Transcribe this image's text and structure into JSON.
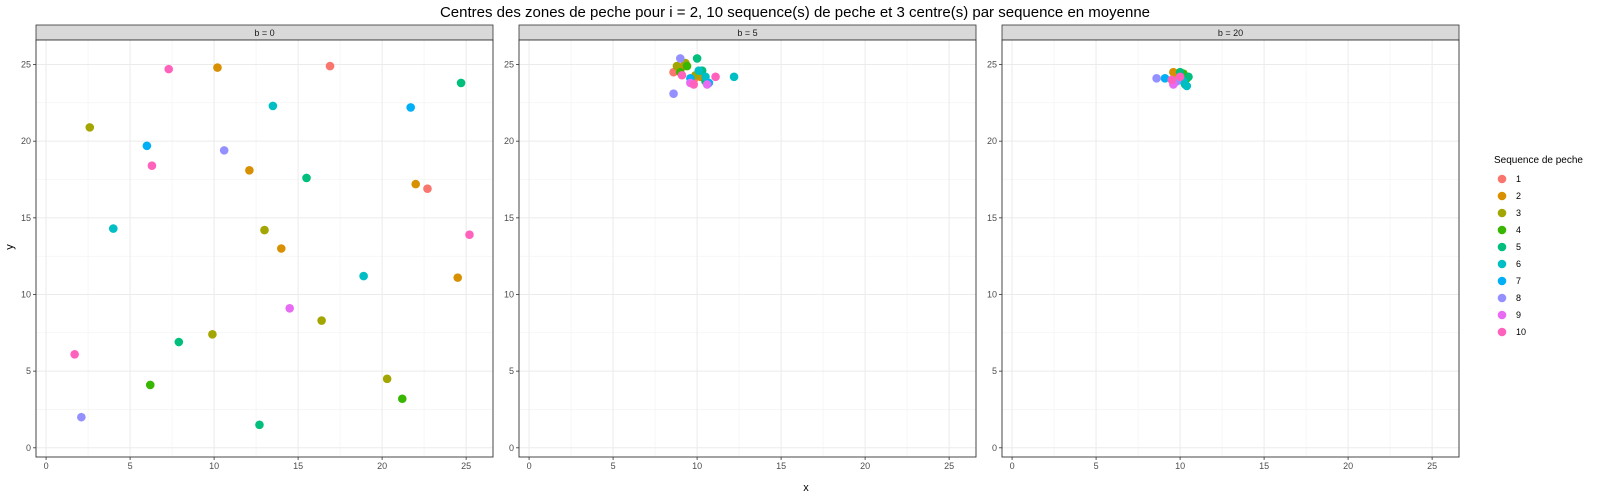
{
  "chart_data": {
    "type": "scatter",
    "title": "Centres des zones de peche pour i = 2, 10 sequence(s) de peche et 3 centre(s) par sequence en moyenne",
    "xlabel": "x",
    "ylabel": "y",
    "xlim": [
      -0.6,
      26.6
    ],
    "ylim": [
      -0.6,
      26.6
    ],
    "x_ticks": [
      "0",
      "5",
      "10",
      "15",
      "20",
      "25"
    ],
    "y_ticks": [
      "0",
      "5",
      "10",
      "15",
      "20",
      "25"
    ],
    "grid": true,
    "legend": {
      "title": "Sequence de peche",
      "position": "right",
      "entries": [
        "1",
        "2",
        "3",
        "4",
        "5",
        "6",
        "7",
        "8",
        "9",
        "10"
      ]
    },
    "colors": [
      "#F8766D",
      "#D89000",
      "#A3A500",
      "#39B600",
      "#00BF7D",
      "#00BFC4",
      "#00B0F6",
      "#9590FF",
      "#E76BF3",
      "#FF62BC"
    ],
    "panels": [
      {
        "strip": "b = 0",
        "points": [
          {
            "seq": 1,
            "x": 16.9,
            "y": 24.9
          },
          {
            "seq": 1,
            "x": 22.7,
            "y": 16.9
          },
          {
            "seq": 2,
            "x": 10.2,
            "y": 24.8
          },
          {
            "seq": 2,
            "x": 12.1,
            "y": 18.1
          },
          {
            "seq": 2,
            "x": 22.0,
            "y": 17.2
          },
          {
            "seq": 2,
            "x": 14.0,
            "y": 13.0
          },
          {
            "seq": 2,
            "x": 24.5,
            "y": 11.1
          },
          {
            "seq": 3,
            "x": 2.6,
            "y": 20.9
          },
          {
            "seq": 3,
            "x": 13.0,
            "y": 14.2
          },
          {
            "seq": 3,
            "x": 9.9,
            "y": 7.4
          },
          {
            "seq": 3,
            "x": 16.4,
            "y": 8.3
          },
          {
            "seq": 3,
            "x": 20.3,
            "y": 4.5
          },
          {
            "seq": 4,
            "x": 6.2,
            "y": 4.1
          },
          {
            "seq": 4,
            "x": 21.2,
            "y": 3.2
          },
          {
            "seq": 5,
            "x": 24.7,
            "y": 23.8
          },
          {
            "seq": 5,
            "x": 15.5,
            "y": 17.6
          },
          {
            "seq": 5,
            "x": 7.9,
            "y": 6.9
          },
          {
            "seq": 5,
            "x": 12.7,
            "y": 1.5
          },
          {
            "seq": 6,
            "x": 13.5,
            "y": 22.3
          },
          {
            "seq": 6,
            "x": 4.0,
            "y": 14.3
          },
          {
            "seq": 6,
            "x": 18.9,
            "y": 11.2
          },
          {
            "seq": 7,
            "x": 21.7,
            "y": 22.2
          },
          {
            "seq": 7,
            "x": 6.0,
            "y": 19.7
          },
          {
            "seq": 8,
            "x": 10.6,
            "y": 19.4
          },
          {
            "seq": 8,
            "x": 2.1,
            "y": 2.0
          },
          {
            "seq": 9,
            "x": 14.5,
            "y": 9.1
          },
          {
            "seq": 10,
            "x": 7.3,
            "y": 24.7
          },
          {
            "seq": 10,
            "x": 6.3,
            "y": 18.4
          },
          {
            "seq": 10,
            "x": 25.2,
            "y": 13.9
          },
          {
            "seq": 10,
            "x": 1.7,
            "y": 6.1
          }
        ]
      },
      {
        "strip": "b = 5",
        "points": [
          {
            "seq": 1,
            "x": 8.6,
            "y": 24.5
          },
          {
            "seq": 1,
            "x": 9.8,
            "y": 24.0
          },
          {
            "seq": 2,
            "x": 9.2,
            "y": 24.9
          },
          {
            "seq": 2,
            "x": 10.2,
            "y": 24.2
          },
          {
            "seq": 3,
            "x": 8.8,
            "y": 24.9
          },
          {
            "seq": 3,
            "x": 9.9,
            "y": 24.3
          },
          {
            "seq": 3,
            "x": 9.3,
            "y": 25.1
          },
          {
            "seq": 4,
            "x": 9.0,
            "y": 24.5
          },
          {
            "seq": 4,
            "x": 9.4,
            "y": 24.9
          },
          {
            "seq": 5,
            "x": 10.0,
            "y": 25.4
          },
          {
            "seq": 5,
            "x": 10.3,
            "y": 24.6
          },
          {
            "seq": 5,
            "x": 10.5,
            "y": 23.9
          },
          {
            "seq": 6,
            "x": 12.2,
            "y": 24.2
          },
          {
            "seq": 6,
            "x": 10.1,
            "y": 24.6
          },
          {
            "seq": 6,
            "x": 10.5,
            "y": 24.2
          },
          {
            "seq": 7,
            "x": 9.6,
            "y": 24.1
          },
          {
            "seq": 7,
            "x": 10.7,
            "y": 23.8
          },
          {
            "seq": 8,
            "x": 8.6,
            "y": 23.1
          },
          {
            "seq": 8,
            "x": 9.0,
            "y": 25.4
          },
          {
            "seq": 9,
            "x": 9.6,
            "y": 23.8
          },
          {
            "seq": 9,
            "x": 10.6,
            "y": 23.7
          },
          {
            "seq": 10,
            "x": 11.1,
            "y": 24.2
          },
          {
            "seq": 10,
            "x": 9.8,
            "y": 23.7
          },
          {
            "seq": 10,
            "x": 9.1,
            "y": 24.3
          }
        ]
      },
      {
        "strip": "b = 20",
        "points": [
          {
            "seq": 1,
            "x": 9.7,
            "y": 24.2
          },
          {
            "seq": 2,
            "x": 9.6,
            "y": 24.5
          },
          {
            "seq": 2,
            "x": 10.1,
            "y": 24.3
          },
          {
            "seq": 3,
            "x": 9.9,
            "y": 24.0
          },
          {
            "seq": 4,
            "x": 10.2,
            "y": 24.4
          },
          {
            "seq": 4,
            "x": 10.4,
            "y": 24.1
          },
          {
            "seq": 5,
            "x": 10.3,
            "y": 23.7
          },
          {
            "seq": 5,
            "x": 10.0,
            "y": 24.5
          },
          {
            "seq": 5,
            "x": 10.5,
            "y": 24.2
          },
          {
            "seq": 6,
            "x": 10.4,
            "y": 23.6
          },
          {
            "seq": 6,
            "x": 10.2,
            "y": 23.9
          },
          {
            "seq": 7,
            "x": 9.1,
            "y": 24.1
          },
          {
            "seq": 8,
            "x": 8.6,
            "y": 24.1
          },
          {
            "seq": 8,
            "x": 9.8,
            "y": 23.9
          },
          {
            "seq": 9,
            "x": 9.6,
            "y": 23.7
          },
          {
            "seq": 10,
            "x": 9.5,
            "y": 24.0
          },
          {
            "seq": 10,
            "x": 10.0,
            "y": 24.2
          }
        ]
      }
    ]
  }
}
